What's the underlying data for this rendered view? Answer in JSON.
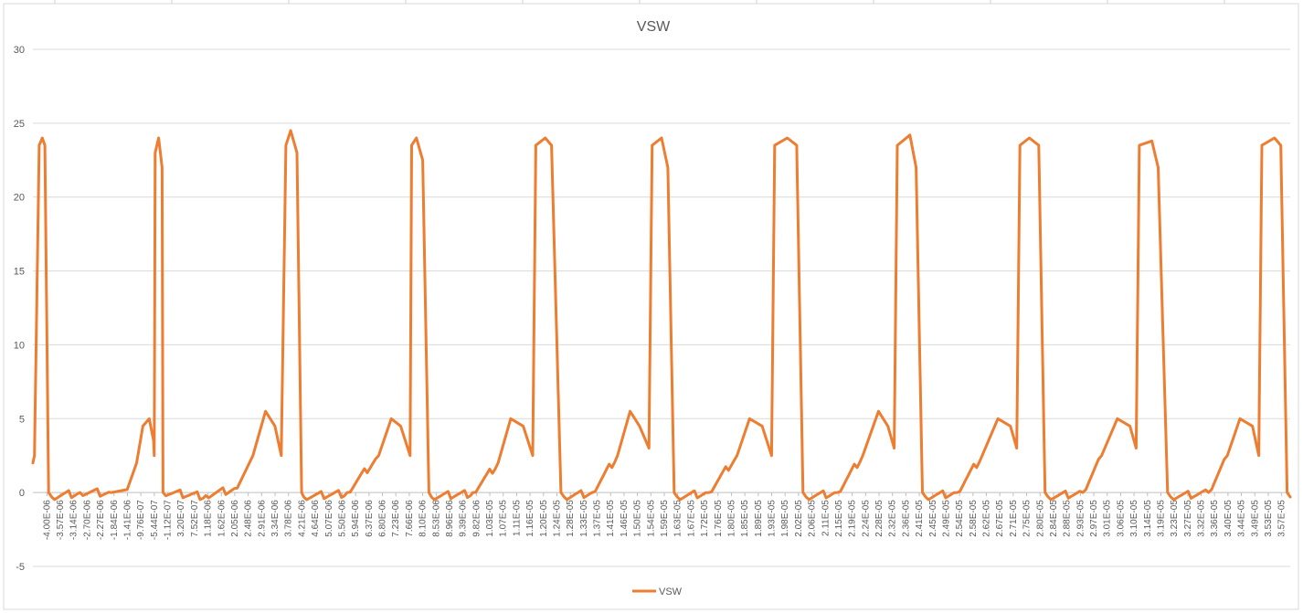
{
  "chart_data": {
    "type": "line",
    "title": "VSW",
    "xlabel": "",
    "ylabel": "",
    "ylim": [
      -5,
      30
    ],
    "yticks": [
      -5,
      0,
      5,
      10,
      15,
      20,
      25,
      30
    ],
    "grid": "horizontal",
    "legend_position": "bottom",
    "series": [
      {
        "name": "VSW",
        "color": "#ED7D31",
        "x": [
          -4e-06,
          -3.95e-06,
          -3.8e-06,
          -3.7e-06,
          -3.62e-06,
          -3.5e-06,
          -3.4e-06,
          -2.5e-06,
          -1.5e-06,
          -1e-06,
          -7e-07,
          -5e-07,
          -3e-07,
          -1.6e-07,
          -1.4e-07,
          -1.1e-07,
          0.0,
          1.1e-07,
          1.4e-07,
          1.5e-06,
          2.5e-06,
          3e-06,
          3.4e-06,
          3.7e-06,
          3.9e-06,
          4.05e-06,
          4.2e-06,
          4.4e-06,
          4.55e-06,
          4.62e-06,
          6e-06,
          7e-06,
          7.4e-06,
          7.7e-06,
          8e-06,
          8.05e-06,
          8.2e-06,
          8.4e-06,
          8.6e-06,
          8.68e-06,
          1e-05,
          1.08e-05,
          1.12e-05,
          1.16e-05,
          1.19e-05,
          1.2e-05,
          1.23e-05,
          1.25e-05,
          1.28e-05,
          1.29e-05,
          1.38e-05,
          1.46e-05,
          1.5e-05,
          1.53e-05,
          1.56e-05,
          1.57e-05,
          1.6e-05,
          1.62e-05,
          1.64e-05,
          1.65e-05,
          1.75e-05,
          1.84e-05,
          1.88e-05,
          1.92e-05,
          1.95e-05,
          1.96e-05,
          2e-05,
          2.03e-05,
          2.05e-05,
          2.06e-05,
          2.16e-05,
          2.24e-05,
          2.29e-05,
          2.32e-05,
          2.34e-05,
          2.35e-05,
          2.39e-05,
          2.41e-05,
          2.43e-05,
          2.44e-05,
          2.54e-05,
          2.62e-05,
          2.67e-05,
          2.71e-05,
          2.73e-05,
          2.74e-05,
          2.77e-05,
          2.8e-05,
          2.82e-05,
          2.83e-05,
          2.94e-05,
          3e-05,
          3.05e-05,
          3.09e-05,
          3.11e-05,
          3.12e-05,
          3.16e-05,
          3.18e-05,
          3.21e-05,
          3.22e-05,
          3.34e-05,
          3.4e-05,
          3.44e-05,
          3.48e-05,
          3.5e-05,
          3.51e-05,
          3.55e-05,
          3.57e-05,
          3.59e-05,
          3.6e-05
        ],
        "values": [
          2,
          2.5,
          23.5,
          24,
          23.5,
          0,
          -0.3,
          0,
          0,
          0.2,
          2,
          4.5,
          5,
          3.5,
          2.5,
          23,
          24,
          22,
          0,
          -0.2,
          0.3,
          2.5,
          5.5,
          4.5,
          2.5,
          23.5,
          24.5,
          23,
          0,
          -0.3,
          0,
          2.5,
          5,
          4.5,
          2.5,
          23.5,
          24,
          22.5,
          0,
          -0.3,
          0,
          2,
          5,
          4.5,
          2.5,
          23.5,
          24,
          23.5,
          0,
          -0.3,
          0,
          2.5,
          5.5,
          4.5,
          3,
          23.5,
          24,
          22,
          0,
          -0.3,
          0,
          2.5,
          5,
          4.5,
          2.5,
          23.5,
          24,
          23.5,
          0,
          -0.3,
          0,
          2.5,
          5.5,
          4.5,
          3,
          23.5,
          24.2,
          22,
          0,
          -0.3,
          0,
          2.5,
          5,
          4.5,
          3,
          23.5,
          24,
          23.5,
          0,
          -0.3,
          0,
          2.5,
          5,
          4.5,
          3,
          23.5,
          23.8,
          22,
          0,
          -0.3,
          0,
          2.5,
          5,
          4.5,
          2.5,
          23.5,
          24,
          23.5,
          0,
          -0.3
        ]
      }
    ],
    "xtick_labels": [
      "-4.00E-06",
      "-3.57E-06",
      "-3.14E-06",
      "-2.70E-06",
      "-2.27E-06",
      "-1.84E-06",
      "-1.41E-06",
      "-9.76E-07",
      "-5.44E-07",
      "-1.12E-07",
      "3.20E-07",
      "7.52E-07",
      "1.18E-06",
      "1.62E-06",
      "2.05E-06",
      "2.48E-06",
      "2.91E-06",
      "3.34E-06",
      "3.78E-06",
      "4.21E-06",
      "4.64E-06",
      "5.07E-06",
      "5.50E-06",
      "5.94E-06",
      "6.37E-06",
      "6.80E-06",
      "7.23E-06",
      "7.66E-06",
      "8.10E-06",
      "8.53E-06",
      "8.96E-06",
      "9.39E-06",
      "9.82E-06",
      "1.03E-05",
      "1.07E-05",
      "1.11E-05",
      "1.16E-05",
      "1.20E-05",
      "1.24E-05",
      "1.28E-05",
      "1.33E-05",
      "1.37E-05",
      "1.41E-05",
      "1.46E-05",
      "1.50E-05",
      "1.54E-05",
      "1.59E-05",
      "1.63E-05",
      "1.67E-05",
      "1.72E-05",
      "1.76E-05",
      "1.80E-05",
      "1.85E-05",
      "1.89E-05",
      "1.93E-05",
      "1.98E-05",
      "2.02E-05",
      "2.06E-05",
      "2.11E-05",
      "2.15E-05",
      "2.19E-05",
      "2.24E-05",
      "2.28E-05",
      "2.32E-05",
      "2.36E-05",
      "2.41E-05",
      "2.45E-05",
      "2.49E-05",
      "2.54E-05",
      "2.58E-05",
      "2.62E-05",
      "2.67E-05",
      "2.71E-05",
      "2.75E-05",
      "2.80E-05",
      "2.84E-05",
      "2.88E-05",
      "2.93E-05",
      "2.97E-05",
      "3.01E-05",
      "3.06E-05",
      "3.10E-05",
      "3.14E-05",
      "3.19E-05",
      "3.23E-05",
      "3.27E-05",
      "3.32E-05",
      "3.36E-05",
      "3.40E-05",
      "3.44E-05",
      "3.49E-05",
      "3.53E-05",
      "3.57E-05"
    ]
  }
}
